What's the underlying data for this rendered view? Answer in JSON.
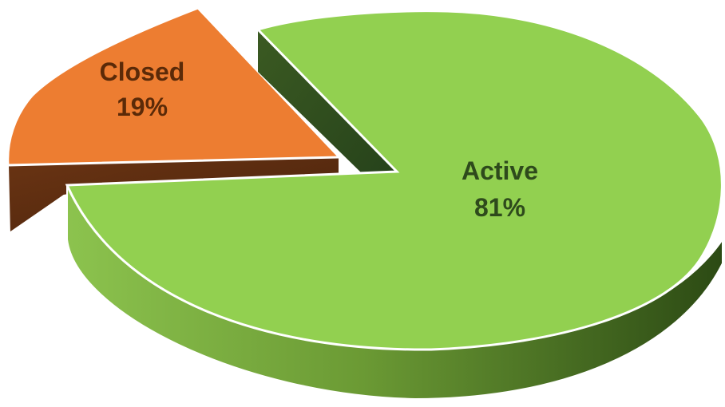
{
  "chart_data": {
    "type": "pie",
    "title": "",
    "slices": [
      {
        "label": "Active",
        "value": 81,
        "value_label": "81%",
        "color": "#92d050",
        "exploded": false
      },
      {
        "label": "Closed",
        "value": 19,
        "value_label": "19%",
        "color": "#ed7d31",
        "exploded": true
      }
    ],
    "style": "3d",
    "legend": "none",
    "label_colors": {
      "Active": "#2e4a1c",
      "Closed": "#5b2a08"
    }
  }
}
